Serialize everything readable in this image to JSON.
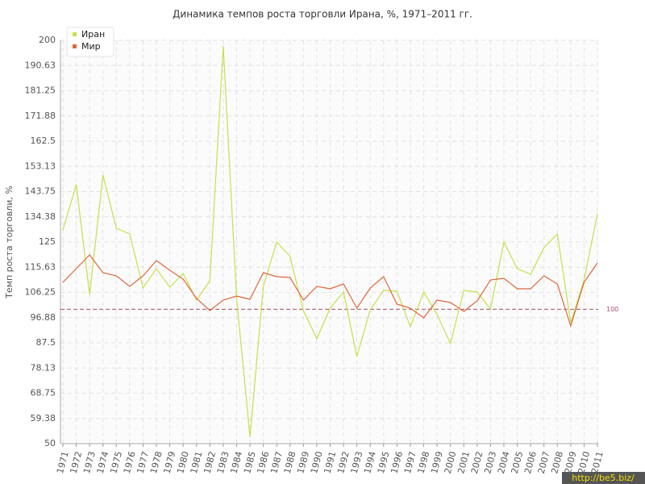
{
  "chart_data": {
    "type": "line",
    "title": "Динамика темпов роста торговли Ирана, %, 1971–2011 гг.",
    "y_label": "Темп роста торговли, %",
    "categories": [
      "1971",
      "1972",
      "1973",
      "1974",
      "1975",
      "1976",
      "1977",
      "1978",
      "1979",
      "1980",
      "1981",
      "1982",
      "1983",
      "1984",
      "1985",
      "1986",
      "1987",
      "1988",
      "1989",
      "1990",
      "1991",
      "1992",
      "1993",
      "1994",
      "1995",
      "1996",
      "1997",
      "1998",
      "1999",
      "2000",
      "2001",
      "2002",
      "2003",
      "2004",
      "2005",
      "2006",
      "2007",
      "2008",
      "2009",
      "2010",
      "2011"
    ],
    "series": [
      {
        "name": "Иран",
        "color": "#c5e04c",
        "values": [
          129.5,
          146.3,
          105.5,
          149.9,
          130.1,
          128,
          107.9,
          115.1,
          108.2,
          113.3,
          103.4,
          110.6,
          197.9,
          104,
          52.4,
          108.5,
          125,
          119.6,
          99.5,
          89,
          100.4,
          106.4,
          82.4,
          99.8,
          107,
          106.7,
          93.5,
          106.4,
          98,
          87.2,
          107,
          106.4,
          100.1,
          125,
          115.1,
          113,
          122.9,
          128,
          95,
          110.9,
          135.5
        ]
      },
      {
        "name": "Мир",
        "color": "#e0663a",
        "values": [
          110,
          115.1,
          120.2,
          113.6,
          112.4,
          108.5,
          112.4,
          118.1,
          114.5,
          111.2,
          104,
          99.5,
          103.4,
          104.9,
          103.7,
          113.6,
          112.1,
          111.8,
          103.4,
          108.5,
          107.6,
          109.4,
          100.4,
          107.9,
          112.1,
          101.9,
          100.4,
          96.8,
          103.4,
          102.5,
          99.2,
          103.1,
          110.9,
          111.5,
          107.6,
          107.6,
          112.4,
          109.4,
          93.8,
          110,
          117.2
        ]
      }
    ],
    "ylim": [
      50,
      200
    ],
    "yticks": [
      50,
      {
        "value": 59.375,
        "label": "59.38"
      },
      68.75,
      {
        "value": 78.125,
        "label": "78.13"
      },
      87.5,
      {
        "value": 96.875,
        "label": "96.88"
      },
      106.25,
      {
        "value": 115.625,
        "label": "115.63"
      },
      125,
      {
        "value": 134.375,
        "label": "134.38"
      },
      143.75,
      {
        "value": 153.125,
        "label": "153.13"
      },
      162.5,
      {
        "value": 171.875,
        "label": "171.88"
      },
      181.25,
      {
        "value": 190.625,
        "label": "190.63"
      },
      200
    ],
    "reference_line": {
      "value": 100,
      "color": "#a8506a"
    },
    "grid": true,
    "legend": "top-left",
    "watermark": "http://be5.biz/"
  }
}
